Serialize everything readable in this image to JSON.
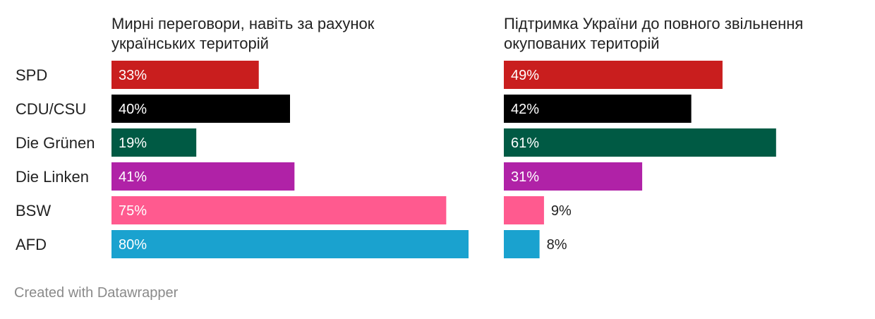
{
  "chart_data": {
    "type": "bar",
    "orientation": "horizontal",
    "categories": [
      "SPD",
      "CDU/CSU",
      "Die Grünen",
      "Die Linken",
      "BSW",
      "AFD"
    ],
    "colors": [
      "#c91e1e",
      "#000000",
      "#005a44",
      "#b022a7",
      "#ff5a8f",
      "#1aa2cf"
    ],
    "xlim": [
      0,
      80
    ],
    "value_suffix": "%",
    "panels": [
      {
        "title": "Мирні переговори, навіть за рахунок українських територій",
        "values": [
          33,
          40,
          19,
          41,
          75,
          80
        ]
      },
      {
        "title": "Підтримка України до повного звільнення окупованих територій",
        "values": [
          49,
          42,
          61,
          31,
          9,
          8
        ]
      }
    ]
  },
  "footer": {
    "credit": "Created with Datawrapper"
  }
}
